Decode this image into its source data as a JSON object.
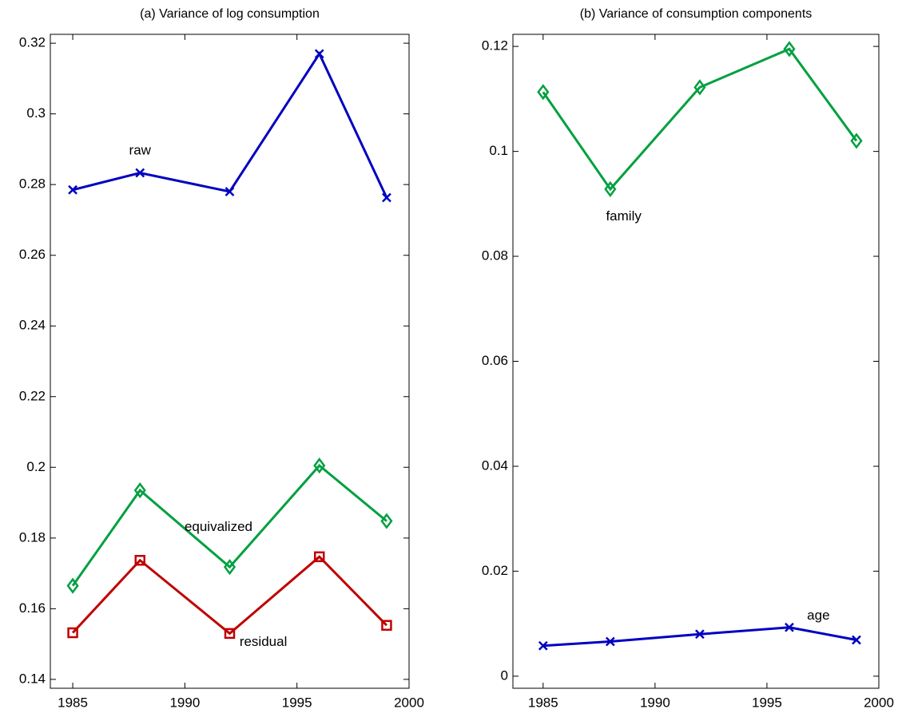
{
  "chart_data": [
    {
      "type": "line",
      "title": "(a) Variance of log consumption",
      "x": [
        1985,
        1988,
        1992,
        1996,
        1999
      ],
      "xlim": [
        1984,
        2000
      ],
      "xticks": [
        1985,
        1990,
        1995,
        2000
      ],
      "ylim": [
        0.1375,
        0.3225
      ],
      "yticks": [
        0.14,
        0.16,
        0.18,
        0.2,
        0.22,
        0.24,
        0.26,
        0.28,
        0.3,
        0.32
      ],
      "series": [
        {
          "name": "raw",
          "color": "#0000c0",
          "marker": "x",
          "values": [
            0.2785,
            0.2833,
            0.278,
            0.317,
            0.2763
          ]
        },
        {
          "name": "equivalized",
          "color": "#00a040",
          "marker": "diamond",
          "values": [
            0.1665,
            0.1935,
            0.1718,
            0.2005,
            0.1848
          ]
        },
        {
          "name": "residual",
          "color": "#c00000",
          "marker": "square",
          "values": [
            0.1532,
            0.1737,
            0.153,
            0.1747,
            0.1553
          ]
        }
      ]
    },
    {
      "type": "line",
      "title": "(b) Variance of consumption components",
      "x": [
        1985,
        1988,
        1992,
        1996,
        1999
      ],
      "xlim": [
        1983.65,
        2000
      ],
      "xticks": [
        1985,
        1990,
        1995,
        2000
      ],
      "ylim": [
        -0.0023,
        0.1223
      ],
      "yticks": [
        0,
        0.02,
        0.04,
        0.06,
        0.08,
        0.1,
        0.12
      ],
      "series": [
        {
          "name": "family",
          "color": "#00a040",
          "marker": "diamond",
          "values": [
            0.1113,
            0.0928,
            0.1122,
            0.1195,
            0.102
          ]
        },
        {
          "name": "age",
          "color": "#0000c0",
          "marker": "x",
          "values": [
            0.0058,
            0.0066,
            0.008,
            0.0093,
            0.0069
          ]
        }
      ]
    }
  ]
}
